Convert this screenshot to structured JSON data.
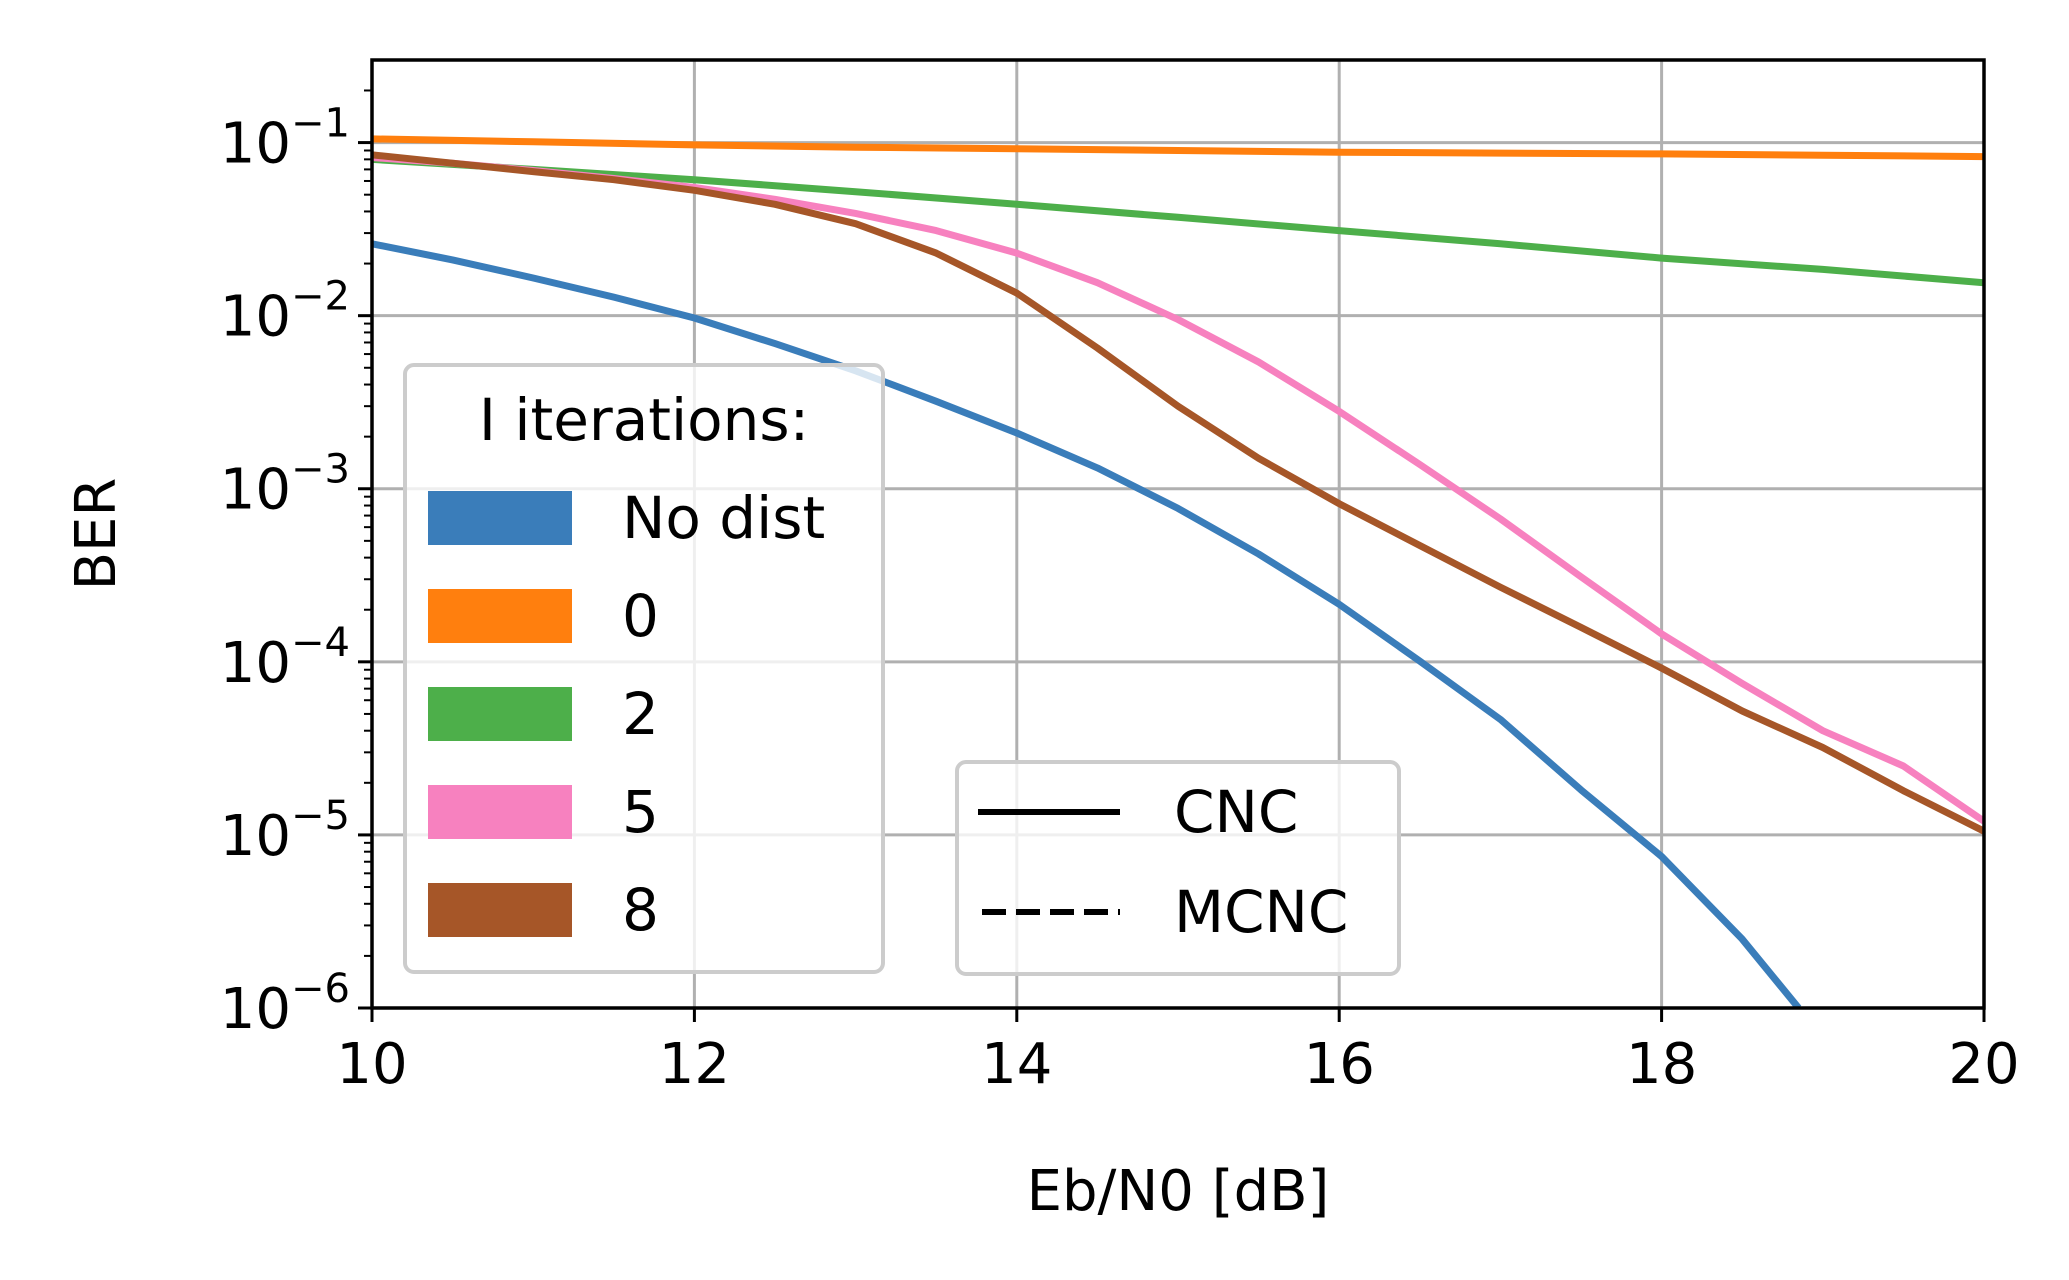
{
  "chart_data": {
    "type": "line",
    "title": "",
    "xlabel": "Eb/N0 [dB]",
    "ylabel": "BER",
    "xlim": [
      10,
      20
    ],
    "ylim": [
      1e-06,
      0.3
    ],
    "yscale": "log",
    "grid": true,
    "x_ticks": [
      10,
      12,
      14,
      16,
      18,
      20
    ],
    "y_ticks": [
      {
        "value": 1e-06,
        "base": "10",
        "exp": "−6"
      },
      {
        "value": 1e-05,
        "base": "10",
        "exp": "−5"
      },
      {
        "value": 0.0001,
        "base": "10",
        "exp": "−4"
      },
      {
        "value": 0.001,
        "base": "10",
        "exp": "−3"
      },
      {
        "value": 0.01,
        "base": "10",
        "exp": "−2"
      },
      {
        "value": 0.1,
        "base": "10",
        "exp": "−1"
      }
    ],
    "legend_iterations": {
      "title": "I iterations:",
      "placement": "lower-left",
      "entries": [
        {
          "label": "No dist",
          "color": "#3a7dba"
        },
        {
          "label": "0",
          "color": "#ff7f0e"
        },
        {
          "label": "2",
          "color": "#4daf4a"
        },
        {
          "label": "5",
          "color": "#f781bf"
        },
        {
          "label": "8",
          "color": "#a65628"
        }
      ]
    },
    "legend_style": {
      "placement": "lower-center",
      "entries": [
        {
          "label": "CNC",
          "dash": "solid"
        },
        {
          "label": "MCNC",
          "dash": "dashed"
        }
      ]
    },
    "series": [
      {
        "name": "No dist",
        "color": "#3a7dba",
        "x": [
          10,
          10.5,
          11,
          11.5,
          12,
          12.5,
          13,
          13.5,
          14,
          14.5,
          15,
          15.5,
          16,
          16.5,
          17,
          17.5,
          18,
          18.5,
          18.85
        ],
        "y": [
          0.026,
          0.021,
          0.0165,
          0.0128,
          0.0097,
          0.0069,
          0.0048,
          0.0032,
          0.0021,
          0.00132,
          0.00077,
          0.00042,
          0.000215,
          0.000101,
          4.65e-05,
          1.82e-05,
          7.5e-06,
          2.5e-06,
          1e-06
        ]
      },
      {
        "name": "0",
        "color": "#ff7f0e",
        "x": [
          10,
          11,
          12,
          13,
          14,
          15,
          16,
          17,
          18,
          19,
          20
        ],
        "y": [
          0.105,
          0.101,
          0.097,
          0.094,
          0.092,
          0.09,
          0.088,
          0.087,
          0.086,
          0.0845,
          0.083
        ]
      },
      {
        "name": "2",
        "color": "#4daf4a",
        "x": [
          10,
          11,
          12,
          13,
          14,
          15,
          16,
          17,
          18,
          19,
          20
        ],
        "y": [
          0.08,
          0.07,
          0.061,
          0.052,
          0.044,
          0.037,
          0.031,
          0.026,
          0.0215,
          0.0185,
          0.0155
        ]
      },
      {
        "name": "5",
        "color": "#f781bf",
        "x": [
          10,
          10.5,
          11,
          11.5,
          12,
          12.5,
          13,
          13.5,
          14,
          14.5,
          15,
          15.5,
          16,
          16.5,
          17,
          17.5,
          18,
          18.5,
          19,
          19.5,
          20
        ],
        "y": [
          0.082,
          0.076,
          0.069,
          0.062,
          0.055,
          0.047,
          0.039,
          0.031,
          0.023,
          0.0155,
          0.0095,
          0.0054,
          0.0028,
          0.00138,
          0.00067,
          0.00031,
          0.000145,
          7.5e-05,
          4e-05,
          2.5e-05,
          1.2e-05
        ]
      },
      {
        "name": "8",
        "color": "#a65628",
        "x": [
          10,
          10.5,
          11,
          11.5,
          12,
          12.5,
          13,
          13.5,
          14,
          14.5,
          15,
          15.5,
          16,
          16.5,
          17,
          17.5,
          18,
          18.5,
          19,
          19.5,
          20
        ],
        "y": [
          0.085,
          0.076,
          0.068,
          0.061,
          0.053,
          0.044,
          0.034,
          0.023,
          0.0135,
          0.0065,
          0.003,
          0.0015,
          0.00082,
          0.00047,
          0.00027,
          0.000158,
          9.2e-05,
          5.2e-05,
          3.2e-05,
          1.8e-05,
          1.05e-05
        ]
      }
    ]
  }
}
